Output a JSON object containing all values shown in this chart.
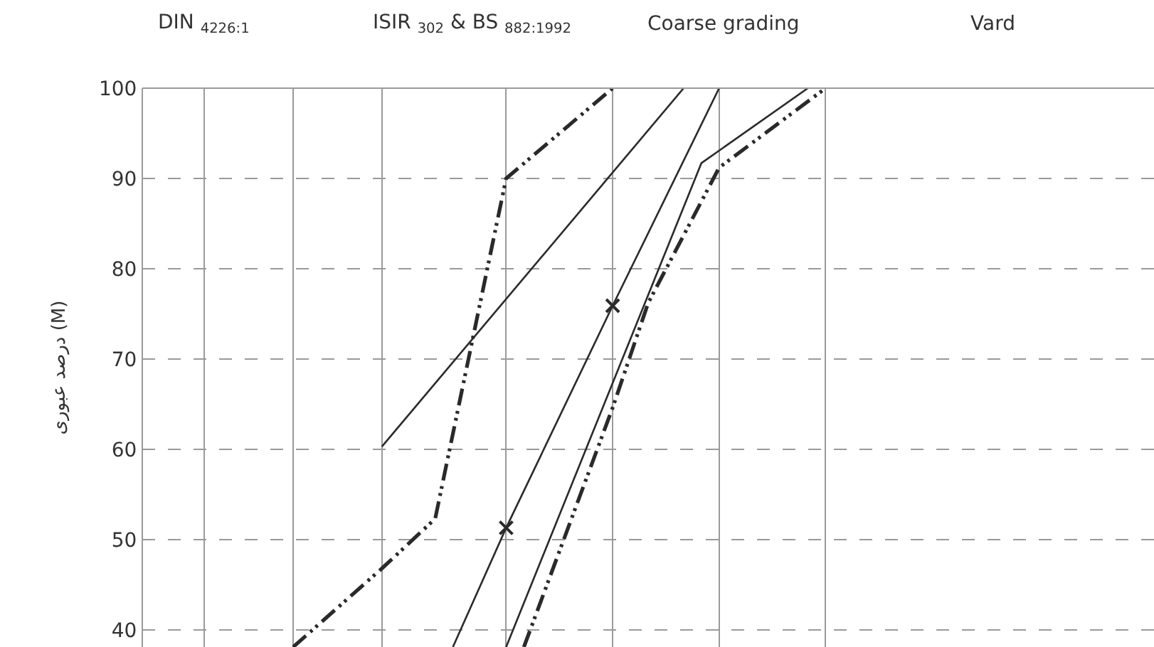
{
  "chart_data": {
    "type": "line",
    "ylabel": "درصد عبوری (M)",
    "annotations": [
      "DIN $_{4226:1}$",
      "ISIR $_{302}$ & BS $_{882:1992}$",
      "Coarse grading",
      "Vard"
    ],
    "categories": [
      null,
      null,
      null,
      null,
      null,
      null,
      null,
      null,
      null,
      null,
      null,
      null,
      null,
      null,
      null,
      null,
      null,
      null,
      null,
      null,
      null,
      null,
      null,
      null,
      null,
      null,
      null,
      null,
      null,
      null,
      null,
      null,
      null,
      null,
      null,
      null,
      null,
      null,
      null,
      null,
      null,
      null,
      null,
      null,
      null,
      null,
      null,
      null,
      null,
      null,
      null,
      null,
      null,
      null,
      null,
      null,
      null
    ],
    "ylim": [
      38.1,
      100
    ],
    "yticks": [
      40,
      50,
      60,
      70,
      80,
      90,
      100
    ],
    "tick_labels": "y",
    "grid": true,
    "series": [
      {
        "color": "#2a2a2a",
        "line_style": "dashed",
        "values": [
          null,
          null,
          null,
          null,
          null,
          null,
          null,
          null,
          38.1,
          null,
          null,
          null,
          null,
          46.8,
          null,
          null,
          52.3,
          null,
          null,
          null,
          90,
          null,
          null,
          null,
          null,
          null,
          100,
          null,
          null,
          null,
          null,
          null,
          null,
          null,
          null,
          null,
          null,
          null,
          null,
          null,
          null,
          null,
          null,
          null,
          null,
          null,
          null,
          null,
          null,
          null,
          null,
          null,
          null,
          null,
          null,
          null,
          null
        ]
      },
      {
        "color": "#2a2a2a",
        "line_style": "solid",
        "values": [
          null,
          null,
          null,
          null,
          null,
          null,
          null,
          null,
          null,
          null,
          null,
          null,
          null,
          60.3,
          null,
          null,
          null,
          null,
          null,
          null,
          null,
          null,
          null,
          null,
          null,
          null,
          null,
          null,
          null,
          null,
          100,
          null,
          null,
          null,
          null,
          null,
          null,
          null,
          null,
          null,
          null,
          null,
          null,
          null,
          null,
          null,
          null,
          null,
          null,
          null,
          null,
          null,
          null,
          null,
          null,
          null,
          null
        ]
      },
      {
        "color": "#2a2a2a",
        "line_style": "solid",
        "values": [
          null,
          null,
          null,
          null,
          null,
          null,
          null,
          null,
          null,
          null,
          null,
          null,
          null,
          null,
          null,
          null,
          null,
          38.1,
          null,
          null,
          51.3,
          null,
          null,
          null,
          null,
          null,
          null,
          null,
          null,
          null,
          null,
          null,
          null,
          null,
          null,
          null,
          null,
          null,
          null,
          null,
          null,
          null,
          null,
          null,
          null,
          null,
          null,
          null,
          null,
          null,
          null,
          null,
          null,
          null,
          null,
          null,
          null
        ]
      },
      {
        "color": "#2a2a2a",
        "line_style": "solid",
        "marker": "cross",
        "values": [
          null,
          null,
          null,
          null,
          null,
          null,
          null,
          null,
          null,
          null,
          null,
          null,
          null,
          null,
          null,
          null,
          null,
          null,
          null,
          null,
          51.3,
          null,
          null,
          null,
          null,
          null,
          75.9,
          null,
          null,
          null,
          null,
          null,
          null,
          null,
          null,
          null,
          null,
          null,
          null,
          null,
          null,
          null,
          null,
          null,
          null,
          null,
          null,
          null,
          null,
          null,
          null,
          null,
          null,
          null,
          null,
          null,
          null
        ]
      },
      {
        "color": "#2a2a2a",
        "line_style": "solid",
        "values": [
          null,
          null,
          null,
          null,
          null,
          null,
          null,
          null,
          null,
          null,
          null,
          null,
          null,
          null,
          null,
          null,
          null,
          null,
          null,
          null,
          null,
          null,
          null,
          null,
          null,
          null,
          75.9,
          null,
          null,
          null,
          null,
          null,
          100,
          null,
          null,
          null,
          null,
          null,
          null,
          null,
          null,
          null,
          null,
          null,
          null,
          null,
          null,
          null,
          null,
          null,
          null,
          null,
          null,
          null,
          null,
          null,
          null
        ]
      },
      {
        "color": "#2a2a2a",
        "line_style": "solid",
        "values": [
          null,
          null,
          null,
          null,
          null,
          null,
          null,
          null,
          null,
          null,
          null,
          null,
          null,
          null,
          null,
          null,
          null,
          null,
          null,
          null,
          38.1,
          null,
          null,
          null,
          null,
          null,
          null,
          null,
          null,
          null,
          null,
          91.7,
          null,
          null,
          null,
          null,
          null,
          100,
          null,
          null,
          null,
          null,
          null,
          null,
          null,
          null,
          null,
          null,
          null,
          null,
          null,
          null,
          null,
          null,
          null,
          null,
          null
        ]
      },
      {
        "color": "#2a2a2a",
        "line_style": "dashed",
        "values": [
          null,
          null,
          null,
          null,
          null,
          null,
          null,
          null,
          null,
          null,
          null,
          null,
          null,
          null,
          null,
          null,
          null,
          null,
          null,
          null,
          null,
          38.1,
          null,
          null,
          null,
          null,
          64.6,
          null,
          76.2,
          null,
          null,
          null,
          91.2,
          null,
          null,
          null,
          null,
          null,
          100,
          null,
          null,
          null,
          null,
          null,
          null,
          null,
          null,
          null,
          null,
          null,
          null,
          null,
          null,
          null,
          null,
          null,
          null
        ]
      }
    ]
  }
}
